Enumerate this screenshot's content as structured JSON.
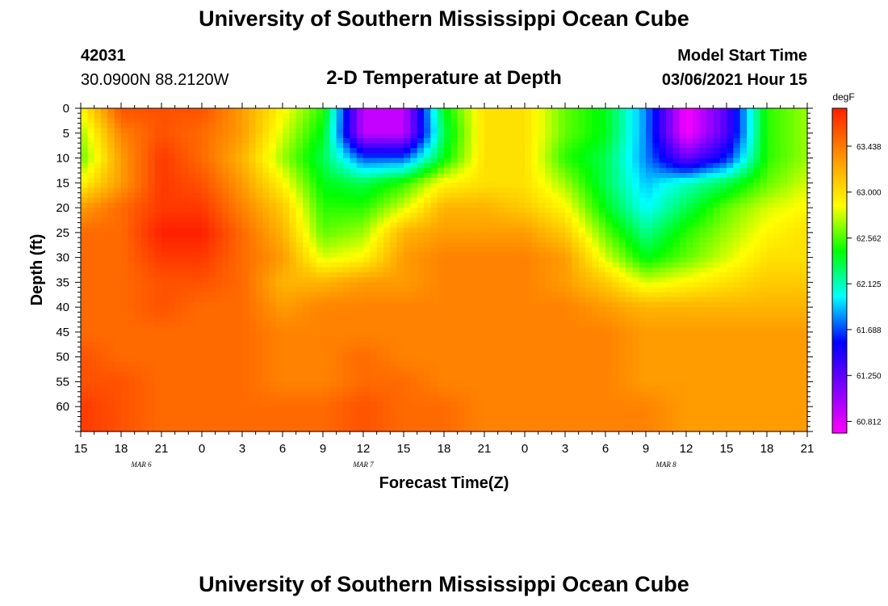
{
  "header": {
    "title": "University of Southern Mississippi Ocean Cube",
    "station_id": "42031",
    "location": "30.0900N 88.2120W",
    "chart_title": "2-D Temperature at Depth",
    "model_start_label": "Model Start Time",
    "model_start_value": "03/06/2021 Hour 15"
  },
  "footer": {
    "title": "University of Southern Mississippi Ocean Cube"
  },
  "colors": {
    "background": "#ffffff",
    "text": "#000000"
  },
  "chart_data": {
    "type": "heatmap",
    "title": "2-D Temperature at Depth",
    "xlabel": "Forecast Time(Z)",
    "ylabel": "Depth (ft)",
    "x_hours_range": [
      0,
      54
    ],
    "x_tick_labels": [
      "15",
      "18",
      "21",
      "0",
      "3",
      "6",
      "9",
      "12",
      "15",
      "18",
      "21",
      "0",
      "3",
      "6",
      "9",
      "12",
      "15",
      "18",
      "21"
    ],
    "x_day_labels": [
      {
        "label": "MAR 6",
        "hour": 4.5
      },
      {
        "label": "MAR 7",
        "hour": 21
      },
      {
        "label": "MAR 8",
        "hour": 43.5
      }
    ],
    "y_range": [
      0,
      65
    ],
    "y_tick_labels": [
      "0",
      "5",
      "10",
      "15",
      "20",
      "25",
      "30",
      "35",
      "40",
      "45",
      "50",
      "55",
      "60"
    ],
    "colorbar": {
      "unit": "degF",
      "range": [
        60.7,
        63.8
      ],
      "tick_labels": [
        "63.438",
        "63.000",
        "62.562",
        "62.125",
        "61.688",
        "61.250",
        "60.812"
      ]
    },
    "grid_x_hours": [
      0,
      3,
      6,
      9,
      12,
      15,
      18,
      21,
      24,
      27,
      30,
      33,
      36,
      39,
      42,
      45,
      48,
      51,
      54
    ],
    "grid_y_depths": [
      0,
      5,
      10,
      15,
      20,
      25,
      30,
      35,
      40,
      45,
      50,
      55,
      60,
      65
    ],
    "temperature_grid": [
      [
        62.9,
        63.6,
        63.6,
        63.6,
        63.3,
        62.9,
        62.5,
        60.9,
        60.9,
        62.4,
        63.0,
        63.0,
        62.6,
        62.4,
        61.8,
        60.7,
        61.3,
        62.5,
        62.7
      ],
      [
        62.7,
        63.4,
        63.6,
        63.5,
        63.3,
        62.8,
        62.4,
        60.9,
        60.9,
        62.3,
        63.0,
        63.0,
        62.6,
        62.4,
        61.8,
        60.7,
        61.3,
        62.5,
        62.7
      ],
      [
        62.6,
        63.3,
        63.7,
        63.5,
        63.2,
        62.7,
        62.3,
        61.7,
        61.7,
        62.4,
        63.0,
        63.0,
        62.5,
        62.3,
        61.8,
        61.2,
        61.6,
        62.5,
        62.7
      ],
      [
        62.9,
        63.3,
        63.7,
        63.6,
        63.3,
        62.9,
        62.4,
        62.3,
        62.5,
        62.9,
        63.0,
        63.0,
        62.7,
        62.3,
        61.9,
        62.1,
        62.3,
        62.6,
        62.8
      ],
      [
        63.3,
        63.5,
        63.7,
        63.7,
        63.4,
        63.1,
        62.5,
        62.5,
        62.8,
        63.2,
        63.2,
        63.1,
        62.9,
        62.4,
        62.0,
        62.3,
        62.6,
        62.8,
        62.9
      ],
      [
        63.5,
        63.5,
        63.8,
        63.8,
        63.5,
        63.2,
        62.6,
        62.7,
        63.2,
        63.3,
        63.3,
        63.3,
        63.1,
        62.6,
        62.2,
        62.5,
        62.7,
        62.9,
        63.0
      ],
      [
        63.5,
        63.5,
        63.7,
        63.7,
        63.5,
        63.3,
        62.8,
        62.9,
        63.3,
        63.4,
        63.4,
        63.4,
        63.3,
        62.8,
        62.4,
        62.6,
        62.8,
        63.0,
        63.0
      ],
      [
        63.5,
        63.5,
        63.6,
        63.6,
        63.5,
        63.2,
        63.2,
        63.3,
        63.3,
        63.4,
        63.4,
        63.4,
        63.3,
        63.1,
        62.8,
        62.9,
        63.0,
        63.1,
        63.1
      ],
      [
        63.5,
        63.5,
        63.6,
        63.5,
        63.5,
        63.3,
        63.4,
        63.4,
        63.4,
        63.4,
        63.4,
        63.4,
        63.4,
        63.3,
        63.2,
        63.2,
        63.2,
        63.2,
        63.2
      ],
      [
        63.5,
        63.5,
        63.5,
        63.5,
        63.5,
        63.4,
        63.4,
        63.4,
        63.4,
        63.4,
        63.4,
        63.4,
        63.4,
        63.4,
        63.3,
        63.3,
        63.3,
        63.3,
        63.3
      ],
      [
        63.6,
        63.5,
        63.5,
        63.5,
        63.5,
        63.4,
        63.4,
        63.5,
        63.4,
        63.4,
        63.4,
        63.4,
        63.4,
        63.4,
        63.3,
        63.3,
        63.3,
        63.3,
        63.3
      ],
      [
        63.6,
        63.6,
        63.5,
        63.5,
        63.5,
        63.4,
        63.4,
        63.5,
        63.5,
        63.4,
        63.4,
        63.4,
        63.4,
        63.4,
        63.3,
        63.3,
        63.3,
        63.3,
        63.3
      ],
      [
        63.7,
        63.6,
        63.5,
        63.5,
        63.5,
        63.5,
        63.5,
        63.6,
        63.5,
        63.5,
        63.4,
        63.4,
        63.4,
        63.4,
        63.4,
        63.3,
        63.3,
        63.3,
        63.3
      ],
      [
        63.7,
        63.6,
        63.5,
        63.5,
        63.5,
        63.5,
        63.5,
        63.6,
        63.5,
        63.5,
        63.4,
        63.4,
        63.4,
        63.4,
        63.4,
        63.3,
        63.3,
        63.3,
        63.3
      ]
    ]
  }
}
